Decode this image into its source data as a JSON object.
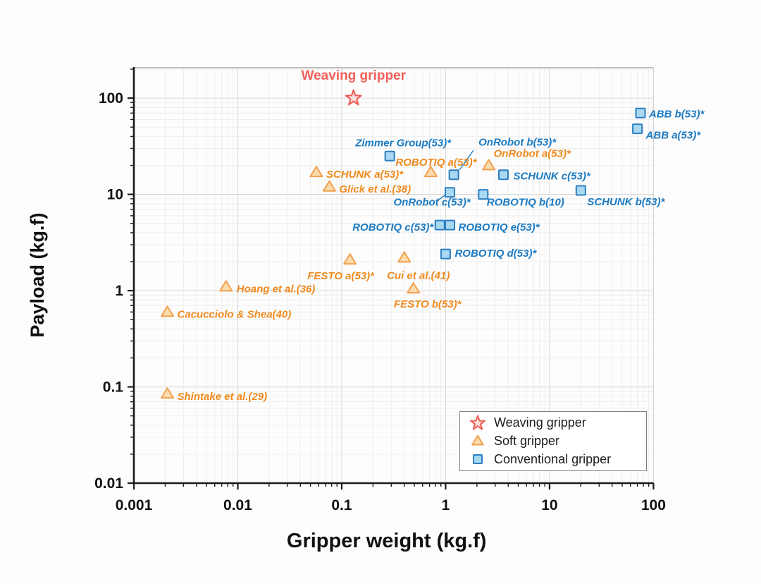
{
  "page": {
    "background": "#fdfdfd"
  },
  "chart_data": {
    "type": "scatter",
    "x_scale": "log",
    "y_scale": "log",
    "xlabel": "Gripper weight (kg.f)",
    "ylabel": "Payload (kg.f)",
    "xlim": [
      0.001,
      100
    ],
    "ylim": [
      0.01,
      207
    ],
    "grid": true,
    "x_ticks": [
      {
        "v": 0.001,
        "label": "0.001"
      },
      {
        "v": 0.01,
        "label": "0.01"
      },
      {
        "v": 0.1,
        "label": "0.1"
      },
      {
        "v": 1,
        "label": "1"
      },
      {
        "v": 10,
        "label": "10"
      },
      {
        "v": 100,
        "label": "100"
      }
    ],
    "y_ticks": [
      {
        "v": 0.01,
        "label": "0.01"
      },
      {
        "v": 0.1,
        "label": "0.1"
      },
      {
        "v": 1,
        "label": "1"
      },
      {
        "v": 10,
        "label": "10"
      },
      {
        "v": 100,
        "label": "100"
      }
    ],
    "series": [
      {
        "name": "Weaving gripper",
        "marker": "star",
        "stroke": "#ee5a52",
        "fill": "#fcdedd",
        "label_color": "#f15f58",
        "points": [
          {
            "label": "Weaving gripper",
            "x": 0.13,
            "y": 100,
            "anchor": "middle",
            "offset": [
              0,
              -26
            ],
            "label_size": 19,
            "italic": false
          }
        ]
      },
      {
        "name": "Soft gripper",
        "marker": "triangle",
        "stroke": "#f2a04e",
        "fill": "#fbdcae",
        "label_color": "#ef8a1e",
        "points": [
          {
            "label": "SCHUNK a(53)*",
            "x": 0.057,
            "y": 17,
            "anchor": "start",
            "offset": [
              14,
              8
            ]
          },
          {
            "label": "Glick et al.(38)",
            "x": 0.076,
            "y": 12,
            "anchor": "start",
            "offset": [
              14,
              8
            ]
          },
          {
            "label": "ROBOTIQ a(53)*",
            "x": 0.72,
            "y": 17,
            "anchor": "start",
            "offset": [
              -50,
              -9
            ]
          },
          {
            "label": "OnRobot a(53)*",
            "x": 2.6,
            "y": 20,
            "anchor": "start",
            "offset": [
              7,
              -12
            ]
          },
          {
            "label": "FESTO a(53)*",
            "x": 0.12,
            "y": 2.1,
            "anchor": "middle",
            "offset": [
              -13,
              28
            ]
          },
          {
            "label": "Cui et al.(41)",
            "x": 0.4,
            "y": 2.2,
            "anchor": "middle",
            "offset": [
              20,
              30
            ]
          },
          {
            "label": "FESTO b(53)*",
            "x": 0.49,
            "y": 1.05,
            "anchor": "middle",
            "offset": [
              20,
              27
            ]
          },
          {
            "label": "Hoang et al.(36)",
            "x": 0.0077,
            "y": 1.1,
            "anchor": "start",
            "offset": [
              15,
              8
            ]
          },
          {
            "label": "Cacucciolo & Shea(40)",
            "x": 0.0021,
            "y": 0.6,
            "anchor": "start",
            "offset": [
              14,
              8
            ]
          },
          {
            "label": "Shintake et al.(29)",
            "x": 0.0021,
            "y": 0.085,
            "anchor": "start",
            "offset": [
              14,
              9
            ]
          }
        ]
      },
      {
        "name": "Conventional gripper",
        "marker": "square",
        "stroke": "#2d7fc0",
        "fill": "#a9d8f1",
        "label_color": "#1b7ac2",
        "points": [
          {
            "label": "ABB b(53)*",
            "x": 75,
            "y": 70,
            "anchor": "start",
            "offset": [
              12,
              6
            ]
          },
          {
            "label": "ABB a(53)*",
            "x": 70,
            "y": 48,
            "anchor": "start",
            "offset": [
              12,
              14
            ]
          },
          {
            "label": "Zimmer Group(53)*",
            "x": 0.29,
            "y": 25,
            "anchor": "middle",
            "offset": [
              19,
              -14
            ]
          },
          {
            "label": "OnRobot b(53)*",
            "x": 1.2,
            "y": 16,
            "anchor": "start",
            "offset": [
              35,
              -41
            ]
          },
          {
            "label": "SCHUNK c(53)*",
            "x": 3.6,
            "y": 16,
            "anchor": "start",
            "offset": [
              14,
              7
            ]
          },
          {
            "label": "OnRobot c(53)*",
            "x": 1.1,
            "y": 10.5,
            "anchor": "start",
            "offset": [
              -80,
              19
            ]
          },
          {
            "label": "ROBOTIQ b(10)",
            "x": 2.3,
            "y": 10,
            "anchor": "start",
            "offset": [
              5,
              16
            ]
          },
          {
            "label": "SCHUNK b(53)*",
            "x": 20,
            "y": 11,
            "anchor": "start",
            "offset": [
              9,
              21
            ]
          },
          {
            "label": "ROBOTIQ c(53)*",
            "x": 0.88,
            "y": 4.8,
            "anchor": "end",
            "offset": [
              -9,
              8
            ]
          },
          {
            "label": "ROBOTIQ e(53)*",
            "x": 1.1,
            "y": 4.8,
            "anchor": "start",
            "offset": [
              12,
              8
            ]
          },
          {
            "label": "ROBOTIQ d(53)*",
            "x": 1.0,
            "y": 2.4,
            "anchor": "start",
            "offset": [
              13,
              4
            ]
          }
        ]
      }
    ],
    "leaders": [
      {
        "from": [
          652,
          241
        ],
        "to": [
          672,
          213
        ],
        "color": "#1b7ac2"
      },
      {
        "from": [
          621,
          284
        ],
        "to": [
          633,
          276
        ],
        "color": "#1b7ac2"
      }
    ],
    "legend": {
      "position": "bottom-right",
      "entries": [
        "Weaving gripper",
        "Soft gripper",
        "Conventional gripper"
      ]
    }
  }
}
